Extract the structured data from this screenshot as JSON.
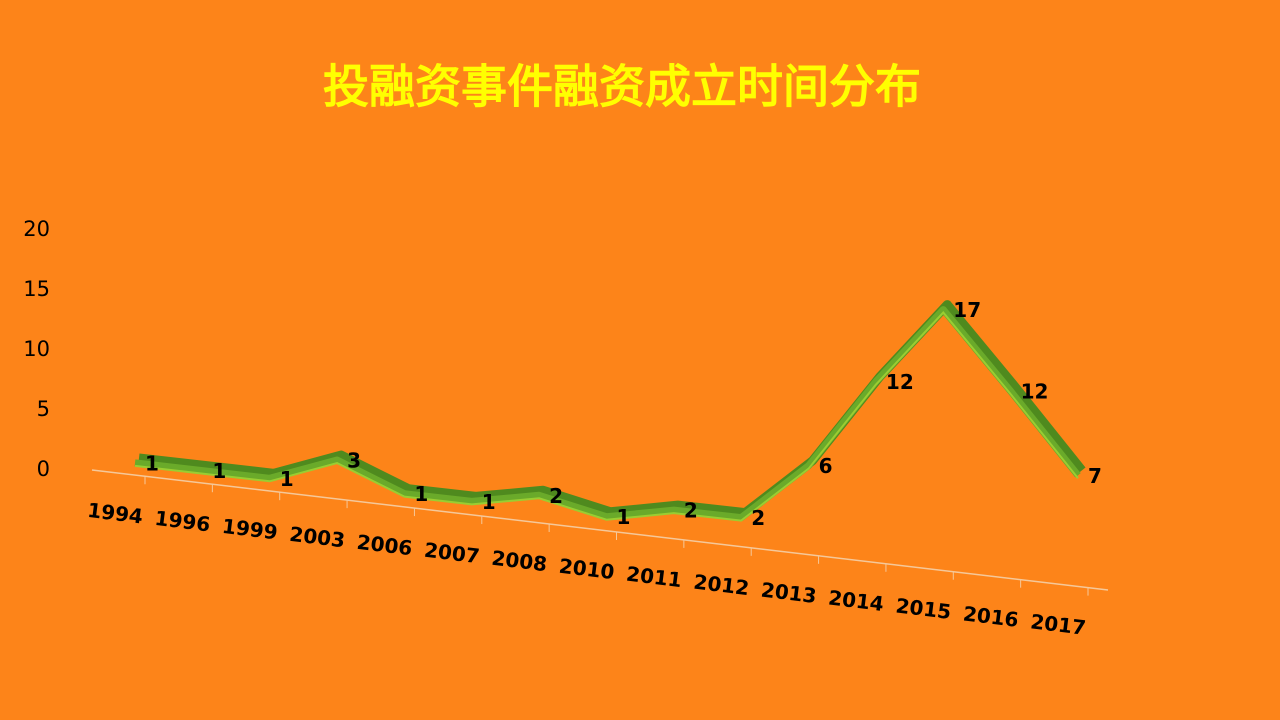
{
  "chart_data": {
    "type": "line",
    "title": "投融资事件融资成立时间分布",
    "categories": [
      "1994",
      "1996",
      "1999",
      "2003",
      "2006",
      "2007",
      "2008",
      "2010",
      "2011",
      "2012",
      "2013",
      "2014",
      "2015",
      "2016",
      "2017"
    ],
    "values": [
      1,
      1,
      1,
      3,
      1,
      1,
      2,
      1,
      2,
      2,
      6,
      12,
      17,
      12,
      7
    ],
    "color": "#6aaa2a",
    "ylim": [
      0,
      20
    ],
    "yticks": [
      0,
      5,
      10,
      15,
      20
    ],
    "grid": false
  }
}
